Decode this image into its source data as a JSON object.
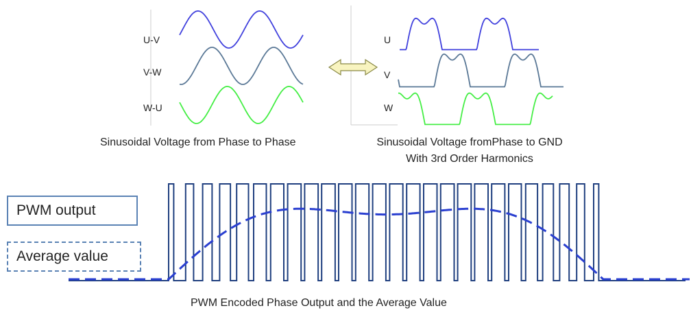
{
  "phase_to_phase": {
    "labels": [
      "U-V",
      "V-W",
      "W-U"
    ],
    "caption": "Sinusoidal Voltage from Phase to Phase"
  },
  "phase_to_gnd": {
    "labels": [
      "U",
      "V",
      "W"
    ],
    "caption_line1": "Sinusoidal Voltage fromPhase to GND",
    "caption_line2": "With 3rd Order Harmonics"
  },
  "pwm": {
    "legend_pwm": "PWM output",
    "legend_avg": "Average value",
    "caption": "PWM Encoded Phase Output and the Average Value"
  },
  "colors": {
    "uv_wave": "#4040dd",
    "vw_wave": "#5a7896",
    "wu_wave": "#44ee44",
    "pwm_line": "#1f3f7f",
    "avg_line": "#2a3fd0",
    "legend_border": "#5a82b4",
    "arrow_fill": "#f8f4c0",
    "arrow_stroke": "#888844"
  }
}
